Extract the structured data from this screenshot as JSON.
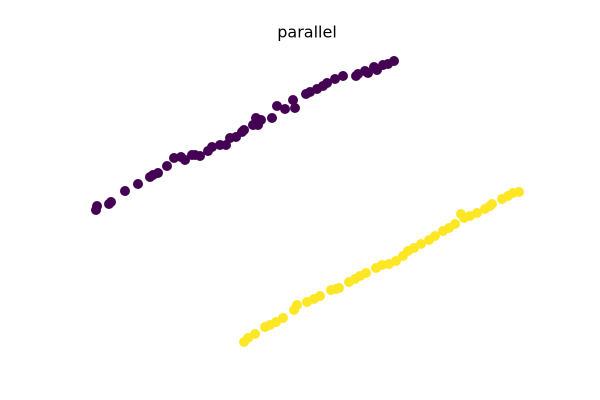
{
  "chart_data": {
    "type": "scatter",
    "title": "parallel",
    "xlim": [
      75,
      540
    ],
    "ylim": [
      48,
      352
    ],
    "series": [
      {
        "color": "#440154",
        "x": [
          96,
          97,
          109,
          111,
          125,
          138,
          150,
          153,
          158,
          167,
          174,
          181,
          185,
          192,
          195,
          200,
          208,
          212,
          220,
          226,
          230,
          236,
          242,
          244,
          253,
          256,
          258,
          261,
          272,
          277,
          285,
          295,
          293,
          306,
          310,
          317,
          323,
          327,
          335,
          343,
          356,
          358,
          365,
          368,
          374,
          377,
          383,
          388,
          394
        ],
        "y": [
          190,
          194,
          196,
          198,
          209,
          216,
          223,
          225,
          227,
          234,
          242,
          243,
          240,
          245,
          245,
          244,
          249,
          253,
          255,
          255,
          262,
          263,
          268,
          270,
          275,
          282,
          275,
          280,
          282,
          294,
          291,
          292,
          300,
          306,
          308,
          311,
          314,
          317,
          321,
          324,
          324,
          326,
          329,
          327,
          333,
          330,
          335,
          336,
          339
        ]
      },
      {
        "color": "#fde725",
        "x": [
          244,
          248,
          255,
          265,
          270,
          276,
          283,
          294,
          297,
          307,
          314,
          320,
          331,
          336,
          339,
          349,
          355,
          360,
          366,
          376,
          382,
          389,
          396,
          403,
          408,
          414,
          421,
          429,
          435,
          443,
          449,
          455,
          461,
          464,
          470,
          477,
          485,
          490,
          492,
          502,
          508,
          513,
          519
        ],
        "y": [
          58,
          62,
          66,
          73,
          75,
          78,
          82,
          90,
          95,
          98,
          101,
          104,
          110,
          111,
          112,
          118,
          121,
          124,
          127,
          132,
          135,
          136,
          139,
          144,
          149,
          152,
          156,
          160,
          164,
          169,
          172,
          176,
          186,
          182,
          184,
          187,
          191,
          194,
          196,
          201,
          204,
          207,
          208
        ]
      }
    ]
  }
}
